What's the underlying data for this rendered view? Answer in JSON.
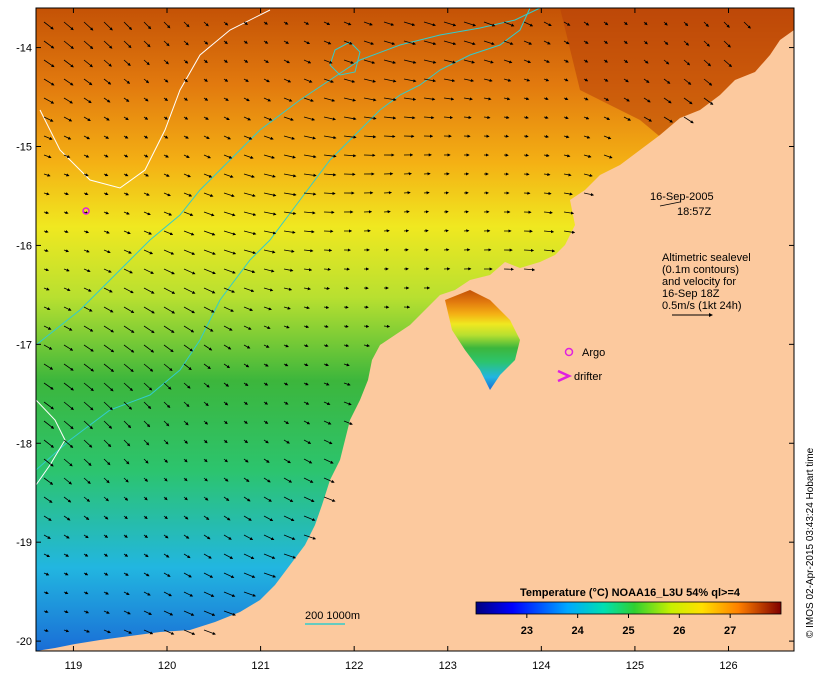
{
  "map": {
    "lon_range": [
      118.6,
      126.7
    ],
    "lat_range": [
      -20.1,
      -13.6
    ],
    "lon_ticks": [
      "119",
      "120",
      "121",
      "122",
      "123",
      "124",
      "125",
      "126"
    ],
    "lat_ticks": [
      "-14",
      "-15",
      "-16",
      "-17",
      "-18",
      "-19",
      "-20"
    ],
    "land_color": "#fcc99e",
    "contour_colors": {
      "sealevel": "#ffffff",
      "isobath": "#33cccc"
    }
  },
  "annotations": {
    "date": "16-Sep-2005",
    "time": "18:57Z",
    "altimetry_lines": [
      "Altimetric sealevel",
      "(0.1m contours)",
      "and velocity for",
      "16-Sep 18Z",
      "0.5m/s (1kt 24h)"
    ],
    "argo_label": "Argo",
    "drifter_label": "drifter",
    "depth_legend": "200 1000m"
  },
  "colorbar": {
    "title": "Temperature (°C) NOAA16_L3U 54% ql>=4",
    "labels": [
      "23",
      "24",
      "25",
      "26",
      "27"
    ],
    "range": [
      22.0,
      28.0
    ]
  },
  "credit": "© IMOS 02-Apr-2015 03:43:24 Hobart time"
}
